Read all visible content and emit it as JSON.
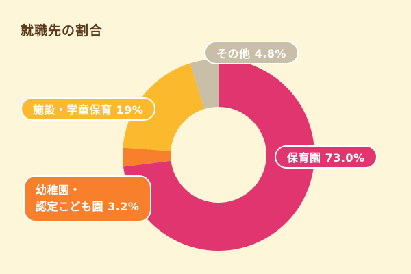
{
  "chart_data": {
    "type": "pie",
    "title": "就職先の割合",
    "donut": true,
    "slices": [
      {
        "label": "保育園",
        "value": 73.0,
        "display": "73.0%",
        "color": "#e0356f"
      },
      {
        "label": "幼稚園・認定こども園",
        "value": 3.2,
        "display": "3.2%",
        "color": "#f87f2b"
      },
      {
        "label": "施設・学童保育",
        "value": 19,
        "display": "19%",
        "color": "#fbb92d"
      },
      {
        "label": "その他",
        "value": 4.8,
        "display": "4.8%",
        "color": "#c9bea8"
      }
    ]
  },
  "labels": {
    "nursery": "保育園 73.0%",
    "kinder_line1": "幼稚園・",
    "kinder_line2": "認定こども園 3.2%",
    "facility": "施設・学童保育 19%",
    "other": "その他 4.8%"
  }
}
